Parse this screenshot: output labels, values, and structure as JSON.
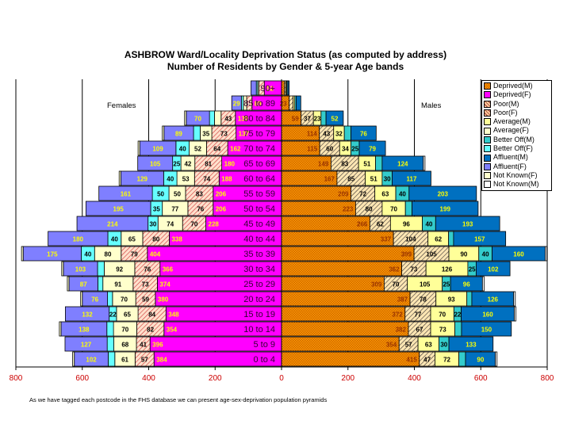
{
  "chart_data": {
    "type": "bar",
    "subtype": "population-pyramid-stacked",
    "title": "ASHBROW Ward/Locality Deprivation Status (as computed by address)",
    "subtitle": "Number of Residents by Gender & 5-year Age bands",
    "xlabel": "",
    "ylabel": "",
    "xlim": [
      -800,
      800
    ],
    "x_ticks": [
      -800,
      -600,
      -400,
      -200,
      0,
      200,
      400,
      600,
      800
    ],
    "x_tick_labels": [
      "800",
      "600",
      "400",
      "200",
      "0",
      "200",
      "400",
      "600",
      "800"
    ],
    "left_label": "Females",
    "right_label": "Males",
    "legend_position": "right",
    "grid": true,
    "categories": [
      "0 to 4",
      "5 to 9",
      "10 to 14",
      "15 to 19",
      "20 to 24",
      "25 to 29",
      "30 to 34",
      "35 to 39",
      "40 to 44",
      "45 to 49",
      "50 to 54",
      "55 to 59",
      "60 to 64",
      "65 to 69",
      "70 to 74",
      "75 to 79",
      "80 to 84",
      "85 to 89",
      "90+"
    ],
    "female_series": [
      {
        "name": "Deprived(F)",
        "color": "#ff00ff",
        "label_color": "#ffff00",
        "values": [
          384,
          396,
          354,
          348,
          380,
          374,
          366,
          404,
          338,
          228,
          206,
          206,
          188,
          180,
          162,
          137,
          139,
          89,
          52
        ]
      },
      {
        "name": "Poor(F)",
        "color": "#ffcc99",
        "pattern": "hatch",
        "values": [
          57,
          41,
          82,
          84,
          59,
          73,
          76,
          79,
          80,
          70,
          76,
          83,
          74,
          81,
          64,
          73,
          43,
          16,
          16
        ]
      },
      {
        "name": "Average(F)",
        "color": "#ffffcc",
        "values": [
          61,
          68,
          70,
          65,
          70,
          91,
          92,
          80,
          65,
          74,
          77,
          50,
          53,
          42,
          52,
          35,
          20,
          10,
          4
        ]
      },
      {
        "name": "Better Off(F)",
        "color": "#66ffff",
        "values": [
          20,
          20,
          20,
          22,
          15,
          15,
          20,
          40,
          40,
          30,
          35,
          50,
          40,
          25,
          40,
          20,
          15,
          6,
          4
        ]
      },
      {
        "name": "Affluent(F)",
        "color": "#7f7fff",
        "label_color": "#ffff00",
        "values": [
          102,
          127,
          138,
          132,
          76,
          87,
          103,
          175,
          180,
          214,
          195,
          161,
          129,
          105,
          109,
          89,
          70,
          29,
          16
        ]
      },
      {
        "name": "Not Known(F)",
        "color": "#ffffcc",
        "values": [
          5,
          0,
          5,
          0,
          5,
          5,
          5,
          5,
          0,
          0,
          0,
          0,
          5,
          0,
          5,
          5,
          5,
          0,
          0
        ]
      }
    ],
    "male_series": [
      {
        "name": "Deprived(M)",
        "color": "#ff9900",
        "pattern": "checker",
        "label_color": "#993300",
        "values": [
          415,
          354,
          382,
          372,
          387,
          309,
          362,
          399,
          337,
          266,
          223,
          209,
          167,
          149,
          115,
          114,
          59,
          23,
          9
        ]
      },
      {
        "name": "Poor(M)",
        "color": "#ffcc99",
        "pattern": "hatch-dark",
        "values": [
          47,
          57,
          67,
          77,
          78,
          70,
          73,
          105,
          104,
          62,
          80,
          72,
          85,
          83,
          60,
          43,
          37,
          12,
          4
        ]
      },
      {
        "name": "Average(M)",
        "color": "#ffff99",
        "values": [
          72,
          63,
          73,
          70,
          93,
          105,
          126,
          90,
          62,
          96,
          70,
          63,
          51,
          51,
          34,
          32,
          23,
          5,
          3
        ]
      },
      {
        "name": "Better Off(M)",
        "color": "#33cccc",
        "values": [
          20,
          30,
          20,
          22,
          15,
          25,
          25,
          40,
          15,
          40,
          20,
          40,
          30,
          20,
          25,
          20,
          15,
          4,
          3
        ]
      },
      {
        "name": "Affluent(M)",
        "color": "#0070c0",
        "label_color": "#ffff00",
        "values": [
          90,
          133,
          150,
          160,
          126,
          96,
          102,
          160,
          157,
          193,
          199,
          203,
          117,
          124,
          79,
          76,
          52,
          14,
          4
        ]
      },
      {
        "name": "Not Known(M)",
        "color": "#ffffff",
        "values": [
          5,
          0,
          0,
          5,
          5,
          5,
          0,
          5,
          0,
          0,
          0,
          0,
          0,
          5,
          0,
          0,
          0,
          0,
          0
        ]
      }
    ],
    "legend": [
      "Deprived(M)",
      "Deprived(F)",
      "Poor(M)",
      "Poor(F)",
      "Average(M)",
      "Average(F)",
      "Better Off(M)",
      "Better Off(F)",
      "Affluent(M)",
      "Affluent(F)",
      "Not Known(F)",
      "Not Known(M)"
    ],
    "legend_colors": [
      "#ff9900",
      "#ff00ff",
      "#ffcc99",
      "#ffcc99",
      "#ffff99",
      "#ffffcc",
      "#33cccc",
      "#66ffff",
      "#0070c0",
      "#7f7fff",
      "#ffffcc",
      "#ffffff"
    ],
    "tick_label_color": "#cc0000",
    "annotation": "As we have tagged each postcode in the FHS database we can present age-sex-deprivation population pyramids"
  }
}
